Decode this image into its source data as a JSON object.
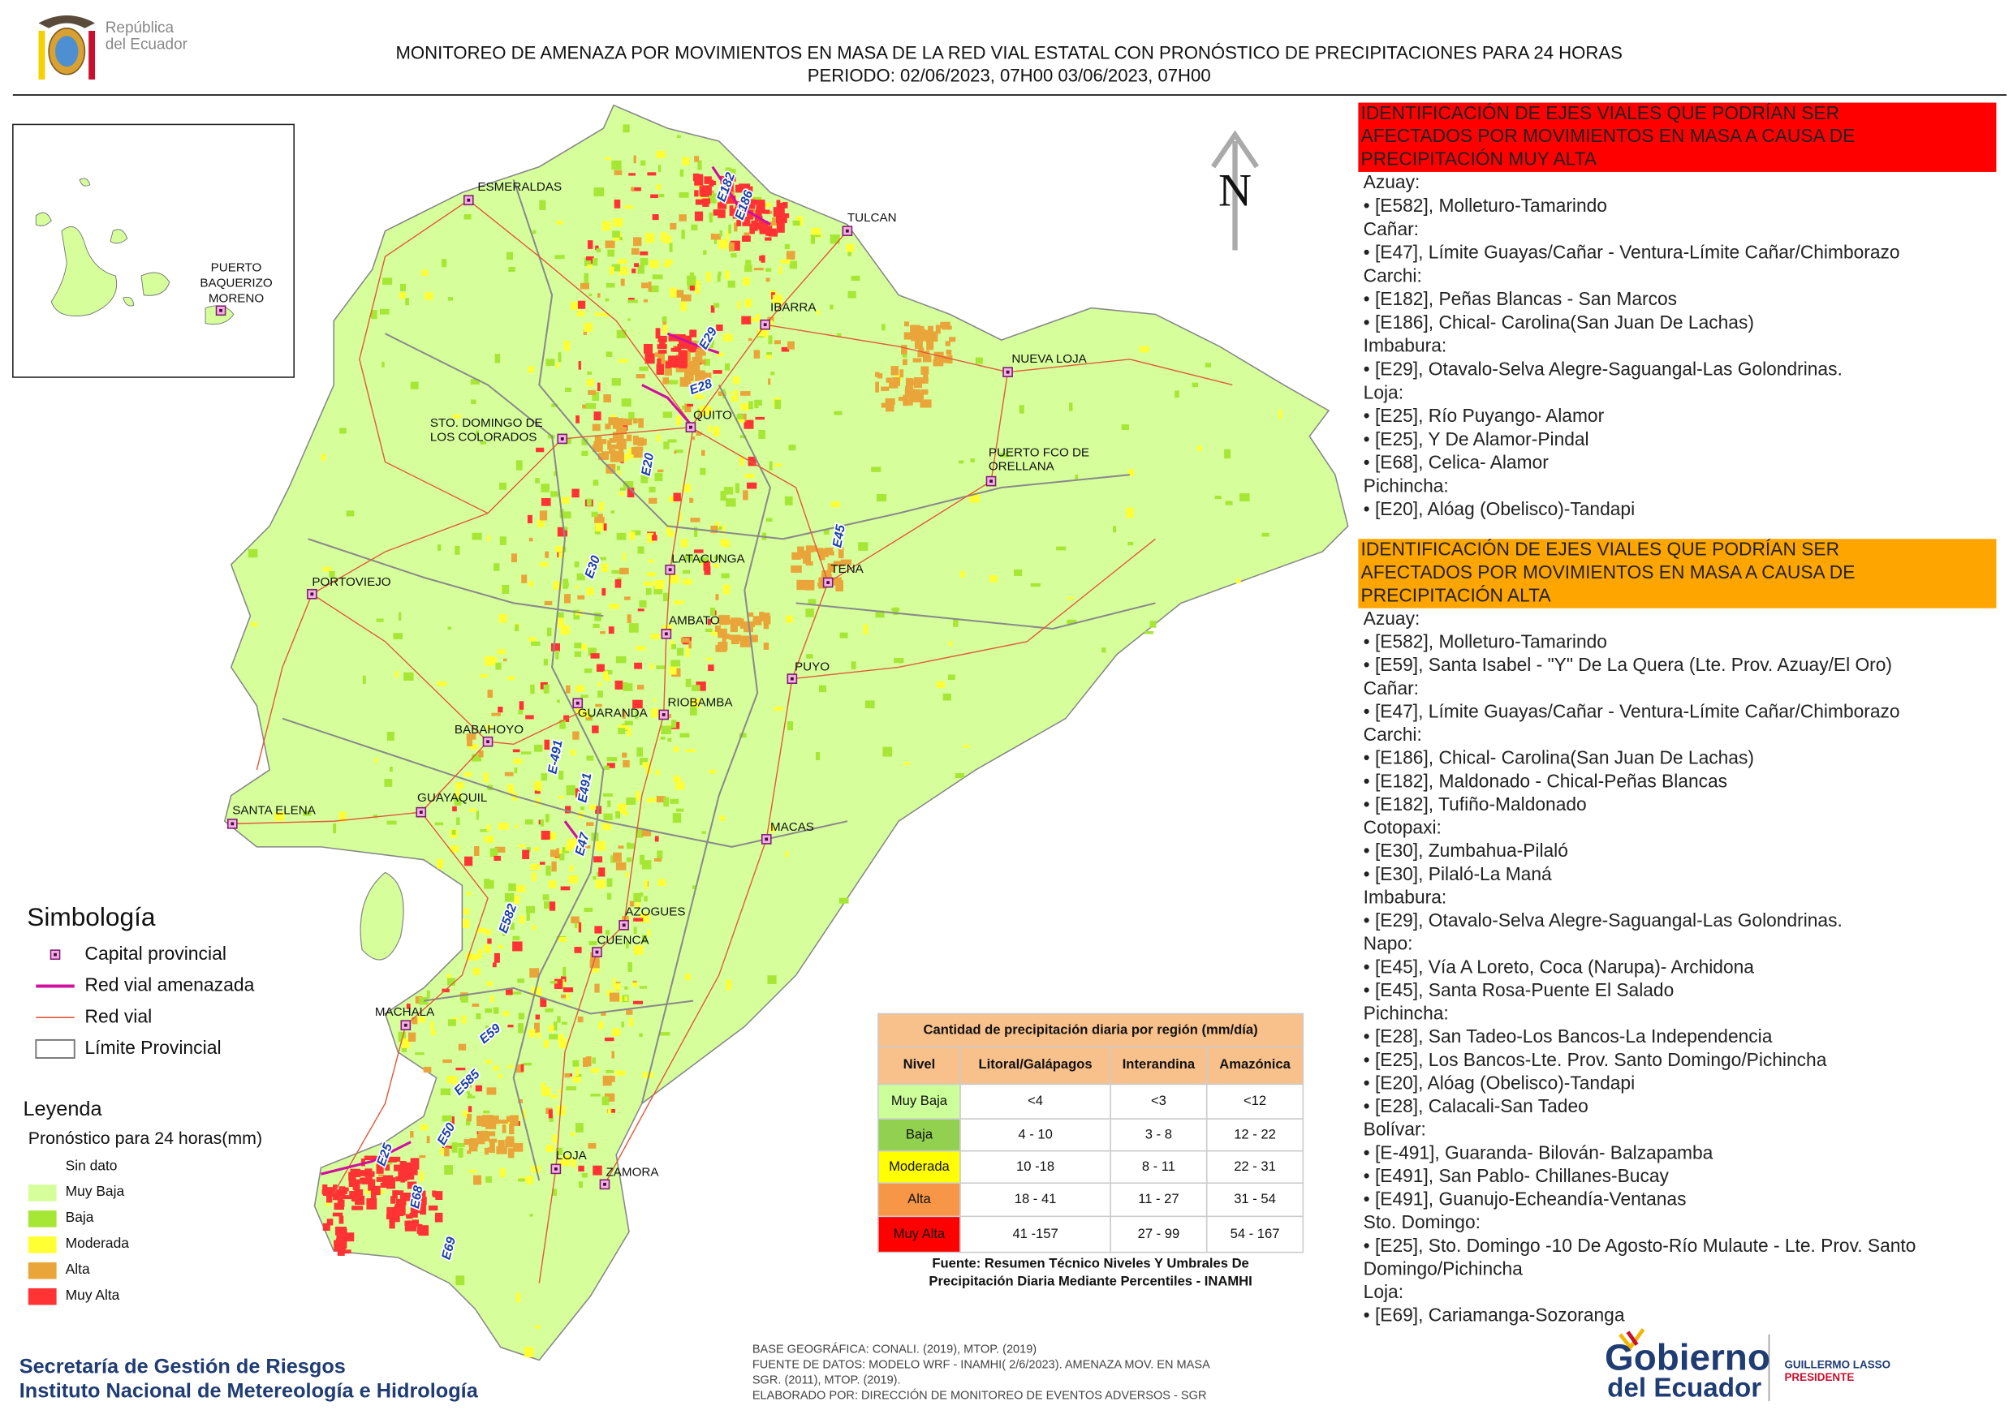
{
  "header": {
    "logo_text": [
      "República",
      "del Ecuador"
    ],
    "title": "MONITOREO DE AMENAZA POR MOVIMIENTOS EN MASA DE LA RED VIAL  ESTATAL  CON PRONÓSTICO  DE  PRECIPITACIONES PARA 24 HORAS",
    "period": "PERIODO: 02/06/2023, 07H00 03/06/2023, 07H00"
  },
  "inset": {
    "city": [
      "PUERTO",
      "BAQUERIZO",
      "MORENO"
    ]
  },
  "map": {
    "north": "N",
    "cities": [
      [
        "ESMERALDAS"
      ],
      [
        "TULCAN"
      ],
      [
        "IBARRA"
      ],
      [
        "NUEVA LOJA"
      ],
      [
        "QUITO"
      ],
      [
        "STO. DOMINGO DE",
        "LOS COLORADOS"
      ],
      [
        "PUERTO FCO DE",
        "ORELLANA"
      ],
      [
        "LATACUNGA"
      ],
      [
        "TENA"
      ],
      [
        "PORTOVIEJO"
      ],
      [
        "AMBATO"
      ],
      [
        "PUYO"
      ],
      [
        "GUARANDA"
      ],
      [
        "RIOBAMBA"
      ],
      [
        "BABAHOYO"
      ],
      [
        "SANTA ELENA"
      ],
      [
        "GUAYAQUIL"
      ],
      [
        "MACAS"
      ],
      [
        "AZOGUES"
      ],
      [
        "CUENCA"
      ],
      [
        "MACHALA"
      ],
      [
        "LOJA"
      ],
      [
        "ZAMORA"
      ]
    ],
    "roads": [
      "E182",
      "E186",
      "E29",
      "E28",
      "E20",
      "E45",
      "E30",
      "E-491",
      "E491",
      "E47",
      "E582",
      "E59",
      "E585",
      "E50",
      "E25",
      "E68",
      "E69"
    ]
  },
  "symbology": {
    "title": "Simbología",
    "items": [
      "Capital provincial",
      "Red vial amenazada",
      "Red vial",
      "Límite Provincial"
    ]
  },
  "legend": {
    "title": "Leyenda",
    "subtitle": "Pronóstico para 24 horas(mm)",
    "items": [
      {
        "label": "Sin dato",
        "color": "#ffffff"
      },
      {
        "label": "Muy Baja",
        "color": "#d6ff9c"
      },
      {
        "label": "Baja",
        "color": "#a6e635"
      },
      {
        "label": "Moderada",
        "color": "#ffff33"
      },
      {
        "label": "Alta",
        "color": "#eaa53a"
      },
      {
        "label": "Muy Alta",
        "color": "#ff3333"
      }
    ]
  },
  "table": {
    "title": "Cantidad de precipitación diaria por región (mm/día)",
    "headers": [
      "Nivel",
      "Litoral/Galápagos",
      "Interandina",
      "Amazónica"
    ],
    "rows": [
      [
        "Muy Baja",
        "<4",
        "<3",
        "<12"
      ],
      [
        "Baja",
        "4 - 10",
        "3 - 8",
        "12 - 22"
      ],
      [
        "Moderada",
        "10 -18",
        "8 - 11",
        "22 - 31"
      ],
      [
        "Alta",
        "18 - 41",
        "11 - 27",
        "31 - 54"
      ],
      [
        "Muy Alta",
        "41 -157",
        "27 - 99",
        "54 - 167"
      ]
    ],
    "row_colors": [
      "#ccff99",
      "#92d050",
      "#ffff00",
      "#f79646",
      "#ff0000"
    ],
    "source": [
      "Fuente: Resumen Técnico Niveles Y Umbrales De",
      "Precipitación Diaria Mediante Percentiles - INAMHI"
    ]
  },
  "credits": [
    "BASE GEOGRÁFICA: CONALI. (2019), MTOP. (2019)",
    "FUENTE DE DATOS: MODELO WRF - INAMHI( 2/6/2023).  AMENAZA MOV. EN MASA",
    "SGR. (2011), MTOP. (2019).",
    "ELABORADO POR: DIRECCIÓN DE MONITOREO DE EVENTOS ADVERSOS - SGR"
  ],
  "footer": [
    "Secretaría de Gestión de Riesgos",
    "Instituto Nacional de Metereología e Hidrología"
  ],
  "gov_logo": {
    "lines": [
      "Gobierno",
      "del Ecuador"
    ],
    "president": [
      "GUILLERMO LASSO",
      "PRESIDENTE"
    ]
  },
  "panels": [
    {
      "title": [
        "IDENTIFICACIÓN DE EJES VIALES QUE PODRÍAN SER",
        "AFECTADOS POR MOVIMIENTOS EN MASA A CAUSA DE",
        "PRECIPITACIÓN MUY ALTA"
      ],
      "color": "#ff0000",
      "groups": [
        {
          "province": "Azuay:",
          "roads": [
            "• [E582], Molleturo-Tamarindo"
          ]
        },
        {
          "province": "Cañar:",
          "roads": [
            "• [E47], Límite Guayas/Cañar - Ventura-Límite Cañar/Chimborazo"
          ]
        },
        {
          "province": "Carchi:",
          "roads": [
            "• [E182], Peñas Blancas - San Marcos",
            "• [E186], Chical- Carolina(San Juan De Lachas)"
          ]
        },
        {
          "province": "Imbabura:",
          "roads": [
            "• [E29], Otavalo-Selva Alegre-Saguangal-Las Golondrinas."
          ]
        },
        {
          "province": "Loja:",
          "roads": [
            "• [E25], Río Puyango- Alamor",
            "• [E25], Y De Alamor-Pindal",
            "• [E68], Celica- Alamor"
          ]
        },
        {
          "province": "Pichincha:",
          "roads": [
            "• [E20], Alóag (Obelisco)-Tandapi"
          ]
        }
      ]
    },
    {
      "title": [
        "IDENTIFICACIÓN DE EJES VIALES QUE PODRÍAN SER",
        "AFECTADOS POR MOVIMIENTOS EN MASA A CAUSA DE",
        "PRECIPITACIÓN  ALTA"
      ],
      "color": "#ffa500",
      "groups": [
        {
          "province": "Azuay:",
          "roads": [
            "• [E582], Molleturo-Tamarindo",
            "• [E59], Santa Isabel - \"Y\" De La Quera (Lte. Prov. Azuay/El Oro)"
          ]
        },
        {
          "province": "Cañar:",
          "roads": [
            "• [E47], Límite Guayas/Cañar - Ventura-Límite Cañar/Chimborazo"
          ]
        },
        {
          "province": "Carchi:",
          "roads": [
            "• [E186], Chical- Carolina(San Juan De Lachas)",
            "• [E182], Maldonado - Chical-Peñas Blancas",
            "• [E182], Tufiño-Maldonado"
          ]
        },
        {
          "province": "Cotopaxi:",
          "roads": [
            "• [E30], Zumbahua-Pilaló",
            "• [E30], Pilaló-La Maná"
          ]
        },
        {
          "province": "Imbabura:",
          "roads": [
            "• [E29], Otavalo-Selva Alegre-Saguangal-Las Golondrinas."
          ]
        },
        {
          "province": "Napo:",
          "roads": [
            "• [E45], Vía A Loreto, Coca (Narupa)- Archidona",
            "• [E45], Santa Rosa-Puente El Salado"
          ]
        },
        {
          "province": "Pichincha:",
          "roads": [
            "• [E28], San Tadeo-Los Bancos-La Independencia",
            "• [E25], Los Bancos-Lte. Prov. Santo Domingo/Pichincha",
            "• [E20], Alóag (Obelisco)-Tandapi",
            "• [E28], Calacali-San Tadeo"
          ]
        },
        {
          "province": "Bolívar:",
          "roads": [
            "• [E-491], Guaranda- Bilován- Balzapamba",
            "• [E491], San Pablo- Chillanes-Bucay",
            "• [E491], Guanujo-Echeandía-Ventanas"
          ]
        },
        {
          "province": "Sto. Domingo:",
          "roads": [
            "• [E25], Sto. Domingo -10 De Agosto-Río Mulaute - Lte. Prov. Santo",
            "Domingo/Pichincha"
          ]
        },
        {
          "province": "Loja:",
          "roads": [
            "• [E69], Cariamanga-Sozoranga"
          ]
        }
      ]
    }
  ]
}
